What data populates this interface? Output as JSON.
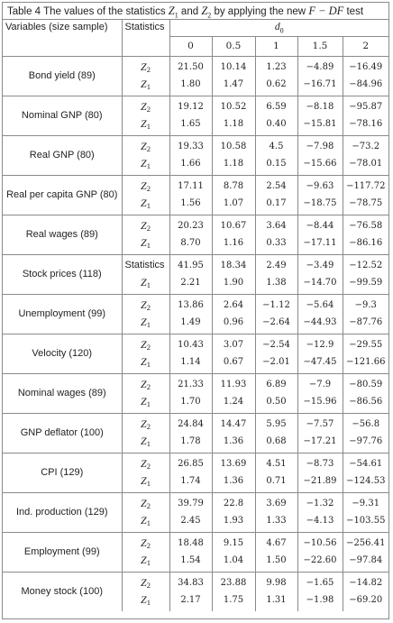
{
  "caption": {
    "prefix": "Table 4   The values of the statistics ",
    "z1": "Z",
    "z1_sub": "1",
    "and": " and ",
    "z2": "Z",
    "z2_sub": "2",
    "middle": " by applying the new ",
    "test_name": "F − DF",
    "suffix": " test"
  },
  "header": {
    "variables": "Variables (size sample)",
    "statistics": "Statistics",
    "d0_symbol": "d",
    "d0_sub": "0",
    "columns": [
      "0",
      "0.5",
      "1",
      "1.5",
      "2"
    ]
  },
  "stat_symbol": "Z",
  "rows": [
    {
      "name": "Bond yield (89)",
      "lines": [
        {
          "sub": "2",
          "values": [
            "21.50",
            "10.14",
            "1.23",
            "−4.89",
            "−16.49"
          ]
        },
        {
          "sub": "1",
          "values": [
            "1.80",
            "1.47",
            "0.62",
            "−16.71",
            "−84.96"
          ]
        }
      ]
    },
    {
      "name": "Nominal GNP (80)",
      "lines": [
        {
          "sub": "2",
          "values": [
            "19.12",
            "10.52",
            "6.59",
            "−8.18",
            "−95.87"
          ]
        },
        {
          "sub": "1",
          "values": [
            "1.65",
            "1.18",
            "0.40",
            "−15.81",
            "−78.16"
          ]
        }
      ]
    },
    {
      "name": "Real GNP (80)",
      "lines": [
        {
          "sub": "2",
          "values": [
            "19.33",
            "10.58",
            "4.5",
            "−7.98",
            "−73.2"
          ]
        },
        {
          "sub": "1",
          "values": [
            "1.66",
            "1.18",
            "0.15",
            "−15.66",
            "−78.01"
          ]
        }
      ]
    },
    {
      "name": "Real per capita GNP (80)",
      "lines": [
        {
          "sub": "2",
          "values": [
            "17.11",
            "8.78",
            "2.54",
            "−9.63",
            "−117.72"
          ]
        },
        {
          "sub": "1",
          "values": [
            "1.56",
            "1.07",
            "0.17",
            "−18.75",
            "−78.75"
          ]
        }
      ]
    },
    {
      "name": "Real wages (89)",
      "lines": [
        {
          "sub": "2",
          "values": [
            "20.23",
            "10.67",
            "3.64",
            "−8.44",
            "−76.58"
          ]
        },
        {
          "sub": "1",
          "values": [
            "8.70",
            "1.16",
            "0.33",
            "−17.11",
            "−86.16"
          ]
        }
      ]
    },
    {
      "name": "Stock prices (118)",
      "plain_header": true,
      "lines": [
        {
          "plain": "Statistics",
          "values": [
            "41.95",
            "18.34",
            "2.49",
            "−3.49",
            "−12.52"
          ]
        },
        {
          "sub": "1",
          "values": [
            "2.21",
            "1.90",
            "1.38",
            "−14.70",
            "−99.59"
          ]
        }
      ]
    },
    {
      "name": "Unemployment (99)",
      "lines": [
        {
          "sub": "2",
          "values": [
            "13.86",
            "2.64",
            "−1.12",
            "−5.64",
            "−9.3"
          ]
        },
        {
          "sub": "1",
          "values": [
            "1.49",
            "0.96",
            "−2.64",
            "−44.93",
            "−87.76"
          ]
        }
      ]
    },
    {
      "name": "Velocity (120)",
      "lines": [
        {
          "sub": "2",
          "values": [
            "10.43",
            "3.07",
            "−2.54",
            "−12.9",
            "−29.55"
          ]
        },
        {
          "sub": "1",
          "values": [
            "1.14",
            "0.67",
            "−2.01",
            "−47.45",
            "−121.66"
          ]
        }
      ]
    },
    {
      "name": "Nominal wages (89)",
      "lines": [
        {
          "sub": "2",
          "values": [
            "21.33",
            "11.93",
            "6.89",
            "−7.9",
            "−80.59"
          ]
        },
        {
          "sub": "1",
          "values": [
            "1.70",
            "1.24",
            "0.50",
            "−15.96",
            "−86.56"
          ]
        }
      ]
    },
    {
      "name": "GNP deflator (100)",
      "lines": [
        {
          "sub": "2",
          "values": [
            "24.84",
            "14.47",
            "5.95",
            "−7.57",
            "−56.8"
          ]
        },
        {
          "sub": "1",
          "values": [
            "1.78",
            "1.36",
            "0.68",
            "−17.21",
            "−97.76"
          ]
        }
      ]
    },
    {
      "name": "CPI (129)",
      "lines": [
        {
          "sub": "2",
          "values": [
            "26.85",
            "13.69",
            "4.51",
            "−8.73",
            "−54.61"
          ]
        },
        {
          "sub": "1",
          "values": [
            "1.74",
            "1.36",
            "0.71",
            "−21.89",
            "−124.53"
          ]
        }
      ]
    },
    {
      "name": "Ind. production (129)",
      "lines": [
        {
          "sub": "2",
          "values": [
            "39.79",
            "22.8",
            "3.69",
            "−1.32",
            "−9.31"
          ]
        },
        {
          "sub": "1",
          "values": [
            "2.45",
            "1.93",
            "1.33",
            "−4.13",
            "−103.55"
          ]
        }
      ]
    },
    {
      "name": "Employment (99)",
      "lines": [
        {
          "sub": "2",
          "values": [
            "18.48",
            "9.15",
            "4.67",
            "−10.56",
            "−256.41"
          ]
        },
        {
          "sub": "1",
          "values": [
            "1.54",
            "1.04",
            "1.50",
            "−22.60",
            "−97.84"
          ]
        }
      ]
    },
    {
      "name": "Money stock (100)",
      "lines": [
        {
          "sub": "2",
          "values": [
            "34.83",
            "23.88",
            "9.98",
            "−1.65",
            "−14.82"
          ]
        },
        {
          "sub": "1",
          "values": [
            "2.17",
            "1.75",
            "1.31",
            "−1.98",
            "−69.20"
          ]
        }
      ]
    }
  ]
}
